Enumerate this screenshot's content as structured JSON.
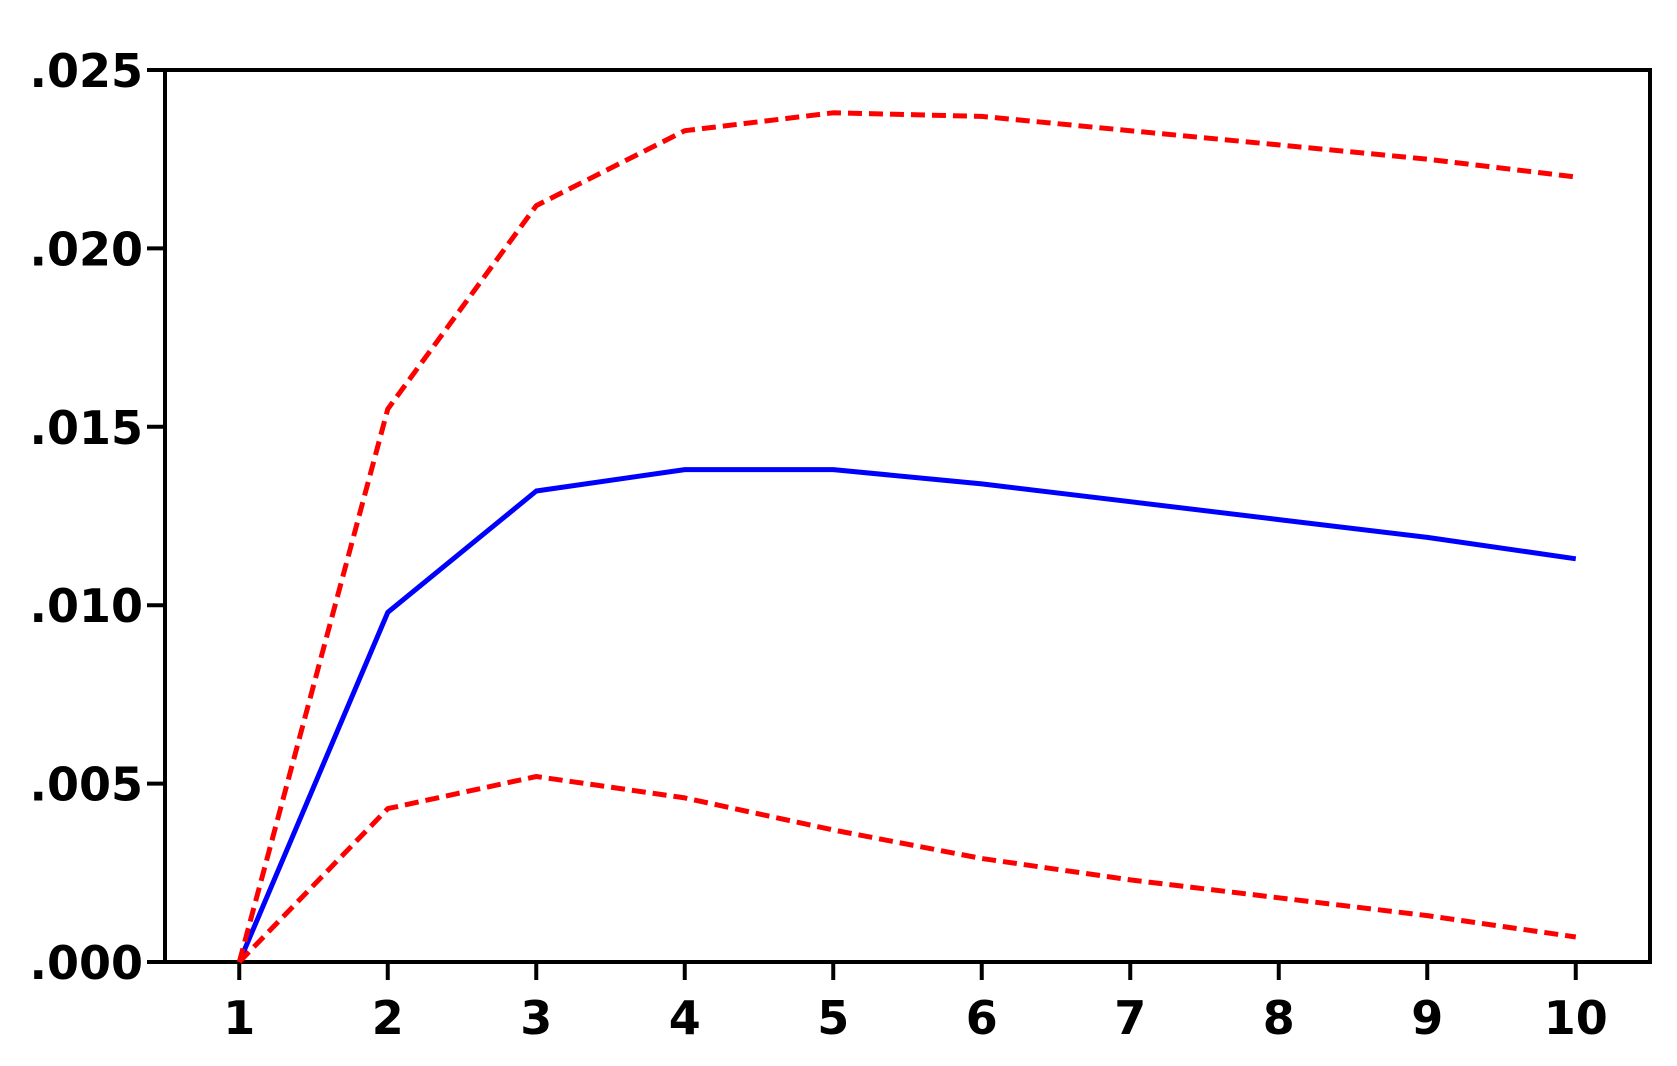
{
  "chart_data": {
    "type": "line",
    "title": "",
    "xlabel": "",
    "ylabel": "",
    "x": [
      1,
      2,
      3,
      4,
      5,
      6,
      7,
      8,
      9,
      10
    ],
    "xlim": [
      0.5,
      10.5
    ],
    "ylim": [
      0.0,
      0.025
    ],
    "x_ticks": [
      1,
      2,
      3,
      4,
      5,
      6,
      7,
      8,
      9,
      10
    ],
    "x_tick_labels": [
      "1",
      "2",
      "3",
      "4",
      "5",
      "6",
      "7",
      "8",
      "9",
      "10"
    ],
    "y_ticks": [
      0.0,
      0.005,
      0.01,
      0.015,
      0.02,
      0.025
    ],
    "y_tick_labels": [
      ".000",
      ".005",
      ".010",
      ".015",
      ".020",
      ".025"
    ],
    "grid": false,
    "legend": "none",
    "series": [
      {
        "role": "response",
        "style": "solid",
        "color": "#0000ff",
        "values": [
          0.0,
          0.0098,
          0.0132,
          0.0138,
          0.0138,
          0.0134,
          0.0129,
          0.0124,
          0.0119,
          0.0113
        ]
      },
      {
        "role": "upper-band",
        "style": "dashed",
        "color": "#ff0000",
        "values": [
          0.0,
          0.0155,
          0.0212,
          0.0233,
          0.0238,
          0.0237,
          0.0233,
          0.0229,
          0.0225,
          0.022
        ]
      },
      {
        "role": "lower-band",
        "style": "dashed",
        "color": "#ff0000",
        "values": [
          0.0,
          0.0043,
          0.0052,
          0.0046,
          0.0037,
          0.0029,
          0.0023,
          0.0018,
          0.0013,
          0.0007
        ]
      }
    ]
  }
}
